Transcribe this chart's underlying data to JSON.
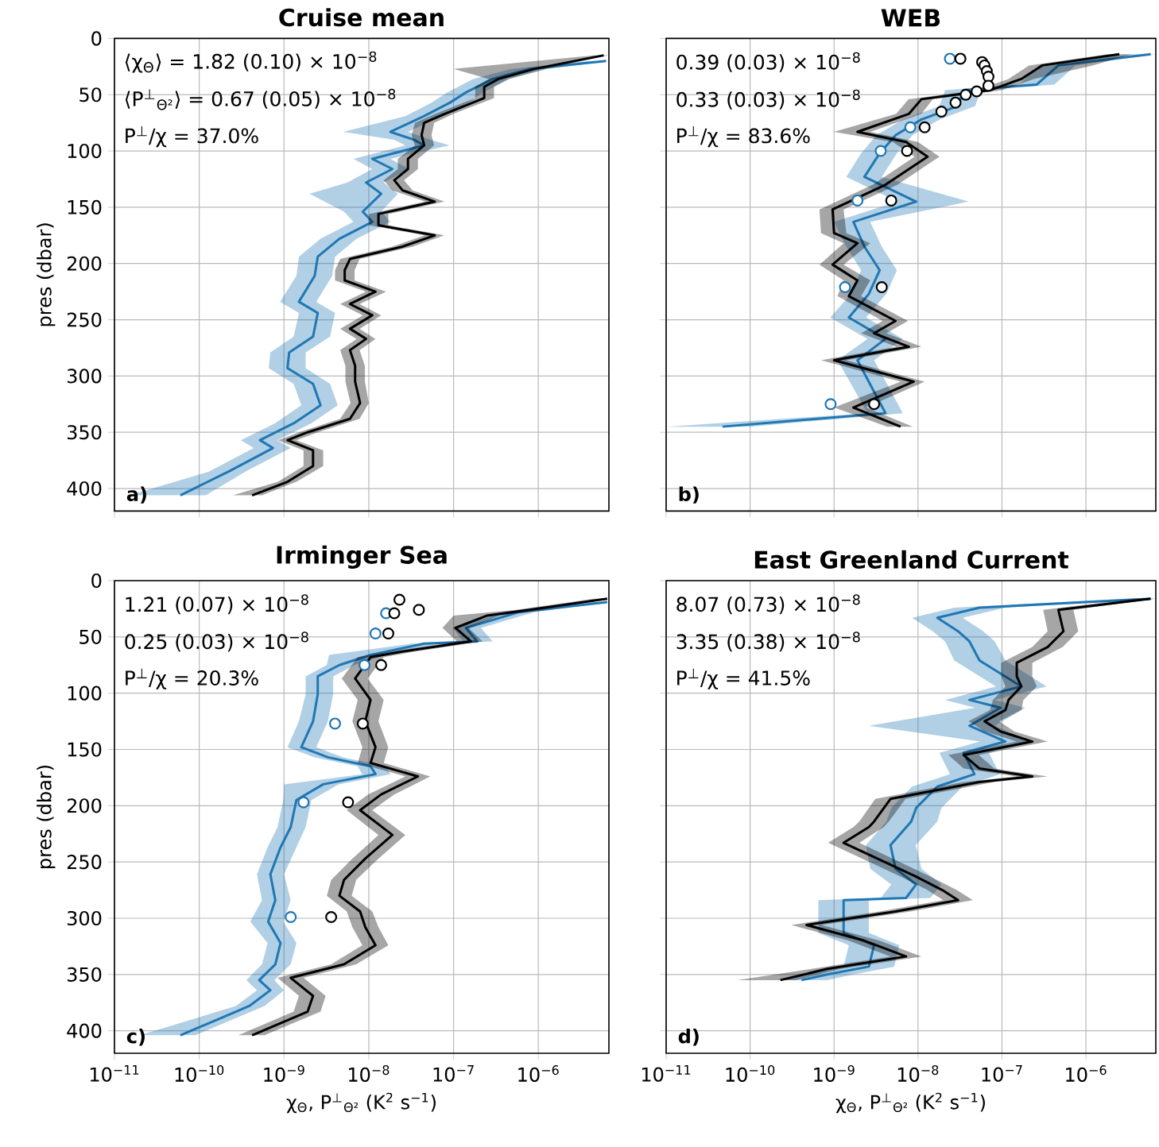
{
  "chart_data": [
    {
      "type": "line",
      "orientation": "horizontal",
      "title": "Cruise mean",
      "ylabel": "pres (dbar)",
      "log": "x",
      "grid": true,
      "tick_labels": "y",
      "xlim": [
        1e-11,
        6.8e-06
      ],
      "xticks": [
        {
          "value": 1e-11,
          "label": null
        },
        {
          "value": 1e-10,
          "label": null
        },
        {
          "value": 1e-09,
          "label": null
        },
        {
          "value": 1e-08,
          "label": null
        },
        {
          "value": 1e-07,
          "label": null
        },
        {
          "value": 1e-06,
          "label": null
        }
      ],
      "ylim": [
        420,
        0
      ],
      "yticks": [
        0,
        50,
        100,
        150,
        200,
        250,
        300,
        350,
        400
      ],
      "annotations": [
        "⟨χ$_{Θ}$⟩ = 1.82 (0.10) × 10$^{−8}$",
        "⟨P$^{⊥}$$_{Θ²}$⟩ = 0.67 (0.05) × 10$^{−8}$",
        "P$^{⊥}$/χ = 37.0%",
        "a)"
      ],
      "series": [
        {
          "color": "#1f77b4",
          "x": [
            20,
            27,
            36,
            48,
            57,
            69,
            83,
            90,
            95,
            107,
            116,
            128,
            138,
            154,
            163,
            178,
            194,
            211,
            234,
            244,
            265,
            279,
            293,
            307,
            326,
            342,
            357,
            364,
            385,
            406
          ],
          "values": [
            6.3e-06,
            8e-07,
            2.9e-07,
            1.4e-07,
            9.1e-08,
            4.5e-08,
            1.8e-08,
            3.4e-08,
            4.5e-08,
            1.1e-08,
            1.9e-08,
            9.3e-09,
            1.4e-08,
            8.5e-09,
            1.1e-08,
            4.5e-09,
            2.5e-09,
            2.3e-09,
            1.5e-09,
            2.5e-09,
            2.2e-09,
            1.15e-09,
            1.1e-09,
            2.2e-09,
            2.7e-09,
            1.3e-09,
            5.2e-10,
            7.4e-10,
            2.2e-10,
            6e-11
          ],
          "lower": [
            4e-06,
            4.8e-07,
            1.7e-07,
            8.4e-08,
            5.5e-08,
            2.7e-08,
            5e-09,
            2e-08,
            2.7e-08,
            6.6e-09,
            1.1e-08,
            5.6e-09,
            2e-09,
            5.1e-09,
            6.6e-09,
            2.7e-09,
            1.5e-09,
            1.4e-09,
            9e-10,
            1.5e-09,
            1.3e-09,
            6.9e-10,
            6.6e-10,
            1.3e-09,
            1.6e-09,
            7.8e-10,
            3.1e-10,
            4.4e-10,
            1.3e-10,
            1.5e-11
          ],
          "upper": [
            6.8e-06,
            1.3e-06,
            4.6e-07,
            2.2e-07,
            1.5e-07,
            7.2e-08,
            2.9e-08,
            5.4e-08,
            9e-08,
            1.8e-08,
            3e-08,
            1.5e-08,
            2.2e-08,
            1.4e-08,
            1.8e-08,
            7.2e-09,
            4e-09,
            3.7e-09,
            2.4e-09,
            4e-09,
            3.5e-09,
            1.8e-09,
            1.8e-09,
            3.5e-09,
            4.3e-09,
            2.1e-09,
            8.3e-10,
            1.2e-09,
            3.5e-10,
            1.2e-10
          ]
        },
        {
          "color": "#000000",
          "x": [
            15,
            27,
            36,
            43,
            53,
            67,
            75,
            86,
            95,
            107,
            116,
            126,
            135,
            145,
            156,
            166,
            175,
            185,
            196,
            206,
            215,
            225,
            236,
            246,
            258,
            267,
            277,
            291,
            305,
            324,
            338,
            350,
            357,
            366,
            380,
            394,
            406
          ],
          "values": [
            5.9e-06,
            9.1e-07,
            3.4e-07,
            2.3e-07,
            2.3e-07,
            7.9e-08,
            4.5e-08,
            4.2e-08,
            4.5e-08,
            2.9e-08,
            2.9e-08,
            2e-08,
            2.5e-08,
            6e-08,
            1.3e-08,
            1.3e-08,
            6e-08,
            2.5e-08,
            6e-09,
            5.2e-09,
            5.2e-09,
            1.2e-08,
            6e-09,
            1.1e-08,
            6e-09,
            9.3e-09,
            6e-09,
            6.9e-09,
            6.9e-09,
            7.9e-09,
            6e-09,
            1.9e-09,
            1.1e-09,
            2.2e-09,
            2.2e-09,
            1.1e-09,
            4.2e-10
          ],
          "lower": [
            4.5e-06,
            1e-07,
            2.6e-07,
            1.8e-07,
            1.8e-07,
            6.1e-08,
            3.5e-08,
            3.2e-08,
            3.5e-08,
            2.2e-08,
            2.2e-08,
            1.5e-08,
            1.9e-08,
            4.6e-08,
            1e-08,
            1e-08,
            4.6e-08,
            1.9e-08,
            4.6e-09,
            4e-09,
            4e-09,
            9.2e-09,
            4.6e-09,
            8.5e-09,
            4.6e-09,
            7.2e-09,
            4.6e-09,
            5.3e-09,
            5.3e-09,
            6.1e-09,
            4.6e-09,
            1.5e-09,
            8.5e-10,
            1.7e-09,
            1.7e-09,
            8.5e-10,
            2.5e-10
          ],
          "upper": [
            6.8e-06,
            1.2e-06,
            4.4e-07,
            3e-07,
            3e-07,
            1e-07,
            5.9e-08,
            5.5e-08,
            5.9e-08,
            3.8e-08,
            3.8e-08,
            2.6e-08,
            3.3e-08,
            7.8e-08,
            1.7e-08,
            1.7e-08,
            7.8e-08,
            3.3e-08,
            7.8e-09,
            6.8e-09,
            6.8e-09,
            1.6e-08,
            7.8e-09,
            1.4e-08,
            7.8e-09,
            1.2e-08,
            7.8e-09,
            9e-09,
            9e-09,
            1e-08,
            7.8e-09,
            2.5e-09,
            1.4e-09,
            2.9e-09,
            2.9e-09,
            1.4e-09,
            5.5e-10
          ]
        }
      ]
    },
    {
      "type": "line",
      "orientation": "horizontal",
      "title": "WEB",
      "log": "x",
      "grid": true,
      "tick_labels": false,
      "xlim": [
        1e-11,
        6.8e-06
      ],
      "xticks": [
        {
          "value": 1e-11,
          "label": null
        },
        {
          "value": 1e-10,
          "label": null
        },
        {
          "value": 1e-09,
          "label": null
        },
        {
          "value": 1e-08,
          "label": null
        },
        {
          "value": 1e-07,
          "label": null
        },
        {
          "value": 1e-06,
          "label": null
        }
      ],
      "ylim": [
        420,
        0
      ],
      "yticks": [
        0,
        50,
        100,
        150,
        200,
        250,
        300,
        350,
        400
      ],
      "annotations": [
        "0.39 (0.03) × 10$^{−8}$",
        "0.33 (0.03) × 10$^{−8}$",
        "P$^{⊥}$/χ = 83.6%",
        "b)"
      ],
      "series": [
        {
          "color": "#1f77b4",
          "x": [
            14,
            24,
            41,
            46,
            60,
            72,
            86,
            102,
            123,
            145,
            163,
            185,
            206,
            227,
            248,
            267,
            286,
            314,
            333,
            345
          ],
          "values": [
            5.9e-06,
            4.7e-07,
            2.6e-07,
            3.5e-08,
            3e-08,
            1.1e-08,
            5.4e-09,
            3.5e-09,
            2.3e-09,
            9.5e-09,
            1.7e-09,
            2.3e-09,
            3.5e-09,
            2.6e-09,
            1.5e-09,
            4.1e-09,
            1.9e-09,
            3e-09,
            4.1e-09,
            4.7e-11
          ],
          "lower": [
            3.5e-06,
            2.8e-07,
            1.6e-07,
            2.1e-08,
            1.8e-08,
            6.6e-09,
            3.2e-09,
            2.1e-09,
            1.4e-09,
            5.7e-09,
            1e-09,
            1.4e-09,
            2.1e-09,
            1.6e-09,
            9e-10,
            2.5e-09,
            1.1e-09,
            1.8e-09,
            2.5e-09,
            1e-11
          ],
          "upper": [
            6.8e-06,
            7.5e-07,
            4.2e-07,
            5.6e-08,
            4.8e-08,
            1.8e-08,
            8.6e-09,
            5.6e-09,
            3.7e-09,
            4e-08,
            2.7e-09,
            3.7e-09,
            5.6e-09,
            4.2e-09,
            2.4e-09,
            6.6e-09,
            3e-09,
            4.8e-09,
            6.6e-09,
            1e-10
          ]
        },
        {
          "color": "#000000",
          "x": [
            14,
            24,
            36,
            46,
            54,
            67,
            83,
            92,
            105,
            130,
            152,
            173,
            182,
            201,
            215,
            229,
            251,
            262,
            274,
            286,
            305,
            328,
            345
          ],
          "values": [
            2.5e-06,
            3e-07,
            1.7e-07,
            7.2e-08,
            1.1e-08,
            7.8e-09,
            1.9e-09,
            7.2e-09,
            1.3e-08,
            4.1e-09,
            9.6e-10,
            1e-09,
            1.9e-09,
            9.6e-10,
            1.9e-09,
            1.5e-09,
            5.4e-09,
            3e-09,
            7.8e-09,
            1e-09,
            8.9e-09,
            1.7e-09,
            6.2e-09
          ],
          "lower": [
            1.8e-06,
            2.1e-07,
            1.2e-07,
            5e-08,
            7.7e-09,
            5.5e-09,
            1e-09,
            5e-09,
            9.1e-09,
            2.9e-09,
            6.7e-10,
            7e-10,
            1.3e-09,
            6.7e-10,
            1.3e-09,
            1.1e-09,
            3.8e-09,
            2.1e-09,
            5.5e-09,
            7e-10,
            6.2e-09,
            1e-09,
            4.3e-09
          ],
          "upper": [
            3.5e-06,
            1.2e-06,
            2.4e-07,
            1e-07,
            1.5e-08,
            1.1e-08,
            2.7e-09,
            1e-08,
            1.8e-08,
            5.7e-09,
            1.3e-09,
            1.4e-09,
            2.7e-09,
            1.3e-09,
            2.7e-09,
            2.1e-09,
            7.6e-09,
            4.2e-09,
            1.1e-08,
            1.4e-09,
            1.2e-08,
            2.4e-09,
            8.7e-09
          ]
        },
        {
          "type": "scatter",
          "marker": "circle",
          "color": "#1f77b4",
          "x": [
            18,
            79,
            100,
            144,
            221,
            325
          ],
          "values": [
            2.4e-08,
            8.1e-09,
            3.6e-09,
            1.9e-09,
            1.35e-09,
            9.1e-10
          ]
        },
        {
          "type": "scatter",
          "marker": "circle",
          "color": "#000000",
          "x": [
            18,
            21,
            24,
            29,
            34,
            42,
            47,
            50,
            57,
            65,
            79,
            100,
            144,
            221,
            325
          ],
          "values": [
            3.2e-08,
            5.8e-08,
            6.2e-08,
            6.6e-08,
            6.9e-08,
            6.9e-08,
            5e-08,
            3.7e-08,
            2.8e-08,
            1.9e-08,
            1.2e-08,
            7.4e-09,
            4.8e-09,
            3.7e-09,
            3e-09
          ]
        }
      ]
    },
    {
      "type": "line",
      "orientation": "horizontal",
      "title": "Irminger Sea",
      "xlabel": "χ$_{Θ}$, P$^{⊥}$$_{Θ²}$  (K$^{2}$ s$^{−1}$)",
      "ylabel": "pres (dbar)",
      "log": "x",
      "grid": true,
      "xlim": [
        1e-11,
        6.8e-06
      ],
      "xticks": [
        {
          "value": 1e-11,
          "label": "10$^{−11}$"
        },
        {
          "value": 1e-10,
          "label": "10$^{−10}$"
        },
        {
          "value": 1e-09,
          "label": "10$^{−9}$"
        },
        {
          "value": 1e-08,
          "label": "10$^{−8}$"
        },
        {
          "value": 1e-07,
          "label": "10$^{−7}$"
        },
        {
          "value": 1e-06,
          "label": "10$^{−6}$"
        }
      ],
      "ylim": [
        420,
        0
      ],
      "yticks": [
        0,
        50,
        100,
        150,
        200,
        250,
        300,
        350,
        400
      ],
      "annotations": [
        "1.21 (0.07) × 10$^{−8}$",
        "0.25 (0.03) × 10$^{−8}$",
        "P$^{⊥}$/χ = 20.3%",
        "c)"
      ],
      "series": [
        {
          "color": "#1f77b4",
          "x": [
            19,
            28,
            42,
            54,
            56,
            66,
            75,
            85,
            101,
            125,
            148,
            157,
            165,
            172,
            181,
            195,
            219,
            237,
            261,
            284,
            303,
            322,
            341,
            355,
            364,
            378,
            404
          ],
          "values": [
            6.5e-06,
            5.9e-07,
            1.4e-07,
            1.9e-07,
            4.5e-08,
            1.05e-08,
            4.5e-09,
            2.5e-09,
            2.5e-09,
            2.2e-09,
            1.6e-09,
            3.3e-09,
            1.05e-08,
            1.2e-08,
            2.9e-09,
            1.4e-09,
            1.2e-09,
            9.1e-10,
            6.9e-10,
            7.9e-10,
            6.5e-10,
            9.1e-10,
            7.9e-10,
            5.1e-10,
            6.9e-10,
            3.9e-10,
            6e-11
          ],
          "lower": [
            4.5e-06,
            4.1e-07,
            9.8e-08,
            1.3e-07,
            3.2e-08,
            3.4e-09,
            3.2e-09,
            1.8e-09,
            1.8e-09,
            1.5e-09,
            1.1e-09,
            2.3e-09,
            7.4e-09,
            8.4e-09,
            1e-09,
            9.8e-10,
            8.4e-10,
            6.4e-10,
            4.8e-10,
            5.5e-10,
            4e-10,
            6.4e-10,
            5.5e-10,
            3.6e-10,
            4.8e-10,
            2.7e-10,
            2e-11
          ],
          "upper": [
            6.8e-06,
            8.9e-07,
            2.1e-07,
            2.9e-07,
            6.8e-08,
            1.6e-08,
            6.8e-09,
            3.8e-09,
            3.8e-09,
            3.3e-09,
            2.4e-09,
            5e-09,
            1.6e-08,
            1.8e-08,
            4.4e-09,
            2.1e-09,
            1.8e-09,
            1.4e-09,
            1e-09,
            1.2e-09,
            9.8e-10,
            1.4e-09,
            1.2e-09,
            7.7e-10,
            1e-09,
            5.9e-10,
            9e-11
          ]
        },
        {
          "color": "#000000",
          "x": [
            16,
            26,
            31,
            42,
            54,
            63,
            68,
            87,
            106,
            125,
            148,
            162,
            174,
            190,
            204,
            226,
            247,
            266,
            280,
            294,
            308,
            324,
            341,
            353,
            369,
            383,
            404
          ],
          "values": [
            6.5e-06,
            7.8e-07,
            2.5e-07,
            1.05e-07,
            1.6e-07,
            2.5e-08,
            1.05e-08,
            6.9e-09,
            1.05e-08,
            9.1e-09,
            1.2e-08,
            1.05e-08,
            3.8e-08,
            1.4e-08,
            7.9e-09,
            1.9e-08,
            9.1e-09,
            5.1e-09,
            4.5e-09,
            7.9e-09,
            9.1e-09,
            1.2e-08,
            5.1e-09,
            1.2e-09,
            2.2e-09,
            1.9e-09,
            4.2e-10
          ],
          "lower": [
            4.5e-06,
            5.5e-07,
            1e-07,
            7.4e-08,
            1.1e-07,
            1.8e-08,
            7.4e-09,
            4.8e-09,
            7.4e-09,
            6.4e-09,
            8.4e-09,
            7.4e-09,
            2.7e-08,
            9.8e-09,
            5.5e-09,
            1.3e-08,
            6.4e-09,
            3.6e-09,
            3.2e-09,
            5.5e-09,
            6.4e-09,
            8.4e-09,
            3.6e-09,
            8.4e-10,
            1.5e-09,
            1.3e-09,
            2.9e-10
          ],
          "upper": [
            6.8e-06,
            1.1e-06,
            3.5e-07,
            1.5e-07,
            2.2e-07,
            3.5e-08,
            1.5e-08,
            9.7e-09,
            1.5e-08,
            1.3e-08,
            1.7e-08,
            1.5e-08,
            5.3e-08,
            2e-08,
            1.1e-08,
            2.7e-08,
            1.3e-08,
            7.1e-09,
            6.3e-09,
            1.1e-08,
            1.3e-08,
            1.7e-08,
            7.1e-09,
            1.7e-09,
            3.1e-09,
            2.7e-09,
            5.9e-10
          ]
        },
        {
          "type": "scatter",
          "marker": "circle",
          "color": "#1f77b4",
          "x": [
            29,
            47,
            75,
            127,
            197,
            299
          ],
          "values": [
            1.6e-08,
            1.2e-08,
            8.9e-09,
            4e-09,
            1.7e-09,
            1.2e-09
          ]
        },
        {
          "type": "scatter",
          "marker": "circle",
          "color": "#000000",
          "x": [
            17,
            26,
            29,
            47,
            75,
            127,
            197,
            299
          ],
          "values": [
            2.3e-08,
            3.9e-08,
            2e-08,
            1.7e-08,
            1.4e-08,
            8.5e-09,
            5.7e-09,
            3.6e-09
          ]
        }
      ]
    },
    {
      "type": "line",
      "orientation": "horizontal",
      "title": "East Greenland Current",
      "xlabel": "χ$_{Θ}$, P$^{⊥}$$_{Θ²}$  (K$^{2}$ s$^{−1}$)",
      "log": "x",
      "grid": true,
      "tick_labels": "x",
      "xlim": [
        1e-11,
        6.8e-06
      ],
      "xticks": [
        {
          "value": 1e-11,
          "label": "10$^{−11}$"
        },
        {
          "value": 1e-10,
          "label": "10$^{−10}$"
        },
        {
          "value": 1e-09,
          "label": "10$^{−9}$"
        },
        {
          "value": 1e-08,
          "label": "10$^{−8}$"
        },
        {
          "value": 1e-07,
          "label": "10$^{−7}$"
        },
        {
          "value": 1e-06,
          "label": "10$^{−6}$"
        }
      ],
      "ylim": [
        420,
        0
      ],
      "yticks": [
        0,
        50,
        100,
        150,
        200,
        250,
        300,
        350,
        400
      ],
      "annotations": [
        "8.07 (0.73) × 10$^{−8}$",
        "3.35 (0.38) × 10$^{−8}$",
        "P$^{⊥}$/χ = 41.5%",
        "d)"
      ],
      "series": [
        {
          "color": "#1f77b4",
          "x": [
            16,
            24,
            33,
            45,
            54,
            71,
            94,
            106,
            113,
            129,
            143,
            153,
            172,
            183,
            202,
            214,
            235,
            256,
            270,
            282,
            284,
            313,
            324,
            343,
            350,
            355
          ],
          "values": [
            5.9e-06,
            5.4e-08,
            1.7e-08,
            3e-08,
            4.1e-08,
            5.4e-08,
            1.7e-07,
            4.1e-08,
            9.6e-08,
            4.1e-08,
            1.1e-07,
            3.5e-08,
            4.7e-08,
            1.7e-08,
            9.5e-09,
            8.3e-09,
            4.7e-09,
            5.4e-09,
            9.5e-09,
            7.2e-09,
            1.3e-09,
            1.3e-09,
            3e-09,
            2.6e-09,
            8.3e-10,
            4.1e-10
          ],
          "lower": [
            3e-06,
            2.7e-08,
            8.5e-09,
            1.5e-08,
            2.1e-08,
            2.7e-08,
            8.5e-08,
            2.1e-08,
            4.8e-08,
            2.6e-09,
            5.5e-08,
            1.8e-08,
            2.4e-08,
            8.5e-09,
            4.8e-09,
            4.2e-09,
            2.4e-09,
            2.7e-09,
            4.8e-09,
            3.6e-09,
            6.5e-10,
            6.5e-10,
            1.5e-09,
            1.3e-09,
            4.2e-10,
            2.1e-10
          ],
          "upper": [
            6.8e-06,
            1.1e-07,
            3.4e-08,
            6e-08,
            8.2e-08,
            1.1e-07,
            3.4e-07,
            8.2e-08,
            1.9e-07,
            8.2e-08,
            2.2e-07,
            7e-08,
            9.4e-08,
            3.4e-08,
            1.9e-08,
            1.7e-08,
            9.4e-09,
            1.1e-08,
            1.9e-08,
            1.4e-08,
            2.6e-09,
            2.6e-09,
            6e-09,
            5.2e-09,
            1.7e-09,
            8.2e-10
          ]
        },
        {
          "color": "#000000",
          "x": [
            16,
            26,
            45,
            59,
            73,
            85,
            94,
            106,
            115,
            125,
            134,
            143,
            155,
            167,
            174,
            179,
            194,
            214,
            219,
            233,
            263,
            275,
            284,
            294,
            306,
            320,
            334,
            345,
            355
          ],
          "values": [
            5.9e-06,
            4.7e-07,
            5.4e-07,
            3.5e-07,
            1.5e-07,
            1.5e-07,
            1.7e-07,
            1.2e-07,
            1.1e-07,
            6.2e-08,
            9.6e-08,
            2.3e-07,
            3.5e-08,
            5.4e-08,
            2.3e-07,
            5.4e-08,
            4.7e-09,
            3e-09,
            2.6e-09,
            1.3e-09,
            9.5e-09,
            1.95e-08,
            3e-08,
            5.4e-09,
            4.7e-10,
            2.3e-09,
            7.2e-09,
            8.3e-10,
            2.3e-10
          ],
          "lower": [
            3.8e-06,
            3.1e-07,
            3.5e-07,
            2.3e-07,
            9.8e-08,
            9.8e-08,
            1.1e-07,
            7.8e-08,
            7.2e-08,
            4e-08,
            6.2e-08,
            1.5e-07,
            2.3e-08,
            3.5e-08,
            1.5e-07,
            3.5e-08,
            3.1e-09,
            2e-09,
            1.7e-09,
            8.5e-10,
            6.2e-09,
            1.3e-08,
            2e-08,
            3.5e-09,
            3.1e-10,
            1.5e-09,
            4.7e-09,
            5.4e-10,
            7e-11
          ],
          "upper": [
            6.8e-06,
            7.1e-07,
            8.1e-07,
            5.3e-07,
            2.3e-07,
            2.3e-07,
            2.6e-07,
            1.8e-07,
            1.7e-07,
            9.3e-08,
            1.4e-07,
            3.5e-07,
            5.3e-08,
            8.1e-08,
            3.5e-07,
            8.1e-08,
            7.1e-09,
            4.5e-09,
            3.9e-09,
            2e-09,
            1.4e-08,
            2.9e-08,
            4.5e-08,
            8.1e-09,
            7.1e-10,
            3.5e-09,
            1.1e-08,
            1.2e-09,
            3.5e-10
          ]
        }
      ]
    }
  ]
}
